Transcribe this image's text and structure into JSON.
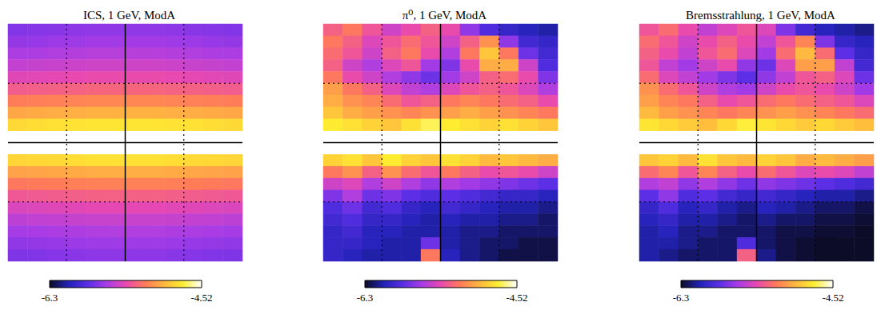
{
  "chart_data": [
    {
      "type": "heatmap",
      "title": "ICS, 1 GeV, ModA",
      "tick_labels": false,
      "grid": true,
      "colorbar": {
        "range": [
          -6.3,
          -4.52
        ],
        "ticks": [
          -6.3,
          -4.52
        ]
      },
      "values": [
        [
          -5.74,
          -5.73,
          -5.72,
          -5.71,
          -5.7,
          -5.7,
          -5.7,
          -5.7,
          -5.71,
          -5.72,
          -5.73,
          -5.74
        ],
        [
          -5.69,
          -5.68,
          -5.67,
          -5.66,
          -5.65,
          -5.65,
          -5.65,
          -5.65,
          -5.66,
          -5.67,
          -5.68,
          -5.69
        ],
        [
          -5.62,
          -5.61,
          -5.6,
          -5.59,
          -5.58,
          -5.58,
          -5.58,
          -5.58,
          -5.59,
          -5.6,
          -5.61,
          -5.62
        ],
        [
          -5.54,
          -5.53,
          -5.52,
          -5.51,
          -5.5,
          -5.5,
          -5.5,
          -5.5,
          -5.51,
          -5.52,
          -5.53,
          -5.54
        ],
        [
          -5.44,
          -5.43,
          -5.42,
          -5.41,
          -5.4,
          -5.4,
          -5.4,
          -5.4,
          -5.41,
          -5.42,
          -5.43,
          -5.44
        ],
        [
          -5.32,
          -5.31,
          -5.3,
          -5.29,
          -5.28,
          -5.28,
          -5.28,
          -5.28,
          -5.29,
          -5.3,
          -5.31,
          -5.32
        ],
        [
          -5.18,
          -5.17,
          -5.16,
          -5.15,
          -5.14,
          -5.14,
          -5.14,
          -5.14,
          -5.15,
          -5.16,
          -5.17,
          -5.18
        ],
        [
          -5.02,
          -5.01,
          -5.0,
          -4.99,
          -4.98,
          -4.98,
          -4.98,
          -4.98,
          -4.99,
          -5.0,
          -5.01,
          -5.02
        ],
        [
          -4.82,
          -4.81,
          -4.8,
          -4.79,
          -4.78,
          -4.78,
          -4.78,
          -4.78,
          -4.79,
          -4.8,
          -4.81,
          -4.82
        ],
        [
          null,
          null,
          null,
          null,
          null,
          null,
          null,
          null,
          null,
          null,
          null,
          null
        ],
        [
          null,
          null,
          null,
          null,
          null,
          null,
          null,
          null,
          null,
          null,
          null,
          null
        ],
        [
          -4.84,
          -4.83,
          -4.82,
          -4.81,
          -4.8,
          -4.8,
          -4.8,
          -4.8,
          -4.81,
          -4.82,
          -4.83,
          -4.84
        ],
        [
          -5.04,
          -5.03,
          -5.02,
          -5.01,
          -5.0,
          -5.0,
          -5.0,
          -5.0,
          -5.01,
          -5.02,
          -5.03,
          -5.04
        ],
        [
          -5.2,
          -5.19,
          -5.18,
          -5.17,
          -5.16,
          -5.16,
          -5.16,
          -5.16,
          -5.17,
          -5.18,
          -5.19,
          -5.2
        ],
        [
          -5.34,
          -5.33,
          -5.32,
          -5.31,
          -5.3,
          -5.3,
          -5.3,
          -5.3,
          -5.31,
          -5.32,
          -5.33,
          -5.34
        ],
        [
          -5.46,
          -5.45,
          -5.44,
          -5.43,
          -5.42,
          -5.42,
          -5.42,
          -5.42,
          -5.43,
          -5.44,
          -5.45,
          -5.46
        ],
        [
          -5.56,
          -5.55,
          -5.54,
          -5.53,
          -5.52,
          -5.52,
          -5.52,
          -5.52,
          -5.53,
          -5.54,
          -5.55,
          -5.56
        ],
        [
          -5.64,
          -5.63,
          -5.62,
          -5.61,
          -5.6,
          -5.6,
          -5.6,
          -5.6,
          -5.61,
          -5.62,
          -5.63,
          -5.64
        ],
        [
          -5.7,
          -5.69,
          -5.68,
          -5.67,
          -5.66,
          -5.66,
          -5.66,
          -5.66,
          -5.67,
          -5.68,
          -5.69,
          -5.7
        ],
        [
          -5.75,
          -5.74,
          -5.73,
          -5.72,
          -5.71,
          -5.71,
          -5.71,
          -5.71,
          -5.72,
          -5.73,
          -5.74,
          -5.75
        ]
      ]
    },
    {
      "type": "heatmap",
      "title": "π⁰, 1 GeV, ModA",
      "tick_labels": false,
      "grid": true,
      "colorbar": {
        "range": [
          -6.3,
          -4.52
        ],
        "ticks": [
          -6.3,
          -4.52
        ]
      },
      "values": [
        [
          -5.3,
          -5.2,
          -5.35,
          -5.5,
          -5.4,
          -5.3,
          -5.4,
          -5.7,
          -5.9,
          -6.0,
          -6.05,
          -6.1
        ],
        [
          -5.2,
          -5.3,
          -5.45,
          -5.35,
          -5.25,
          -5.35,
          -5.5,
          -5.3,
          -5.1,
          -5.7,
          -5.95,
          -6.0
        ],
        [
          -5.25,
          -5.35,
          -5.5,
          -5.3,
          -5.2,
          -5.4,
          -5.6,
          -5.2,
          -4.9,
          -5.2,
          -5.8,
          -5.95
        ],
        [
          -5.3,
          -5.5,
          -5.6,
          -5.45,
          -5.35,
          -5.65,
          -5.75,
          -5.4,
          -5.0,
          -5.0,
          -5.5,
          -5.9
        ],
        [
          -5.2,
          -5.4,
          -5.5,
          -5.6,
          -5.7,
          -5.8,
          -5.65,
          -5.5,
          -5.3,
          -5.25,
          -5.4,
          -5.75
        ],
        [
          -5.05,
          -5.2,
          -5.3,
          -5.45,
          -5.55,
          -5.6,
          -5.45,
          -5.35,
          -5.3,
          -5.35,
          -5.45,
          -5.6
        ],
        [
          -5.0,
          -5.1,
          -5.15,
          -5.25,
          -5.35,
          -5.3,
          -5.2,
          -5.15,
          -5.2,
          -5.25,
          -5.3,
          -5.4
        ],
        [
          -4.9,
          -5.0,
          -5.05,
          -5.1,
          -5.15,
          -5.1,
          -5.05,
          -5.0,
          -5.05,
          -5.1,
          -5.15,
          -5.2
        ],
        [
          -4.75,
          -4.8,
          -4.85,
          -4.9,
          -4.8,
          -4.7,
          -4.75,
          -4.8,
          -4.85,
          -4.8,
          -4.85,
          -4.9
        ],
        [
          null,
          null,
          null,
          null,
          null,
          null,
          null,
          null,
          null,
          null,
          null,
          null
        ],
        [
          null,
          null,
          null,
          null,
          null,
          null,
          null,
          null,
          null,
          null,
          null,
          null
        ],
        [
          -4.85,
          -4.8,
          -4.9,
          -4.75,
          -4.85,
          -4.9,
          -4.8,
          -4.85,
          -4.95,
          -4.9,
          -4.95,
          -5.0
        ],
        [
          -5.2,
          -5.1,
          -5.3,
          -5.1,
          -5.25,
          -5.35,
          -5.2,
          -5.3,
          -5.4,
          -5.35,
          -5.4,
          -5.5
        ],
        [
          -5.5,
          -5.45,
          -5.6,
          -5.5,
          -5.6,
          -5.7,
          -5.6,
          -5.65,
          -5.7,
          -5.75,
          -5.8,
          -5.85
        ],
        [
          -5.75,
          -5.6,
          -5.8,
          -5.75,
          -5.85,
          -5.9,
          -5.85,
          -5.9,
          -5.95,
          -6.0,
          -6.0,
          -6.05
        ],
        [
          -5.9,
          -5.8,
          -5.95,
          -5.9,
          -6.0,
          -6.05,
          -5.95,
          -6.0,
          -6.05,
          -6.1,
          -6.1,
          -6.15
        ],
        [
          -5.95,
          -5.9,
          -6.0,
          -6.0,
          -6.05,
          -6.1,
          -6.05,
          -6.1,
          -6.1,
          -6.15,
          -6.15,
          -6.2
        ],
        [
          -6.0,
          -5.95,
          -6.05,
          -6.05,
          -6.1,
          -6.1,
          -6.1,
          -6.15,
          -6.15,
          -6.2,
          -6.2,
          -6.2
        ],
        [
          -6.0,
          -6.0,
          -6.05,
          -6.1,
          -6.1,
          -5.8,
          -6.1,
          -6.15,
          -6.2,
          -6.2,
          -6.25,
          -6.25
        ],
        [
          -6.0,
          -6.05,
          -6.1,
          -6.1,
          -6.1,
          -5.2,
          -6.05,
          -6.15,
          -6.2,
          -6.25,
          -6.25,
          -6.25
        ]
      ]
    },
    {
      "type": "heatmap",
      "title": "Bremsstrahlung, 1 GeV, ModA",
      "tick_labels": false,
      "grid": true,
      "colorbar": {
        "range": [
          -6.3,
          -4.52
        ],
        "ticks": [
          -6.3,
          -4.52
        ]
      },
      "values": [
        [
          -5.35,
          -5.25,
          -5.4,
          -5.55,
          -5.45,
          -5.35,
          -5.45,
          -5.75,
          -5.95,
          -6.05,
          -6.1,
          -6.15
        ],
        [
          -5.25,
          -5.35,
          -5.5,
          -5.4,
          -5.3,
          -5.4,
          -5.55,
          -5.35,
          -5.15,
          -5.75,
          -6.0,
          -6.05
        ],
        [
          -5.3,
          -5.4,
          -5.55,
          -5.35,
          -5.25,
          -5.45,
          -5.65,
          -5.25,
          -4.95,
          -5.25,
          -5.85,
          -6.0
        ],
        [
          -5.35,
          -5.55,
          -5.65,
          -5.5,
          -5.4,
          -5.7,
          -5.8,
          -5.45,
          -5.05,
          -5.05,
          -5.55,
          -5.95
        ],
        [
          -5.25,
          -5.45,
          -5.55,
          -5.65,
          -5.75,
          -5.85,
          -5.7,
          -5.55,
          -5.35,
          -5.3,
          -5.45,
          -5.8
        ],
        [
          -5.1,
          -5.25,
          -5.35,
          -5.5,
          -5.6,
          -5.65,
          -5.5,
          -5.4,
          -5.35,
          -5.4,
          -5.5,
          -5.65
        ],
        [
          -5.05,
          -5.15,
          -5.2,
          -5.3,
          -5.4,
          -5.35,
          -5.25,
          -5.2,
          -5.25,
          -5.3,
          -5.35,
          -5.45
        ],
        [
          -4.95,
          -5.05,
          -5.1,
          -5.15,
          -5.2,
          -5.15,
          -5.1,
          -5.05,
          -5.1,
          -5.15,
          -5.2,
          -5.25
        ],
        [
          -4.78,
          -4.83,
          -4.88,
          -4.93,
          -4.83,
          -4.73,
          -4.78,
          -4.83,
          -4.88,
          -4.83,
          -4.88,
          -4.93
        ],
        [
          null,
          null,
          null,
          null,
          null,
          null,
          null,
          null,
          null,
          null,
          null,
          null
        ],
        [
          null,
          null,
          null,
          null,
          null,
          null,
          null,
          null,
          null,
          null,
          null,
          null
        ],
        [
          -4.9,
          -4.85,
          -4.95,
          -4.8,
          -4.9,
          -4.95,
          -4.85,
          -4.9,
          -5.0,
          -4.95,
          -5.0,
          -5.05
        ],
        [
          -5.25,
          -5.15,
          -5.35,
          -5.15,
          -5.3,
          -5.4,
          -5.25,
          -5.35,
          -5.45,
          -5.4,
          -5.45,
          -5.55
        ],
        [
          -5.6,
          -5.55,
          -5.7,
          -5.6,
          -5.7,
          -5.8,
          -5.7,
          -5.75,
          -5.8,
          -5.85,
          -5.9,
          -5.95
        ],
        [
          -5.85,
          -5.7,
          -5.9,
          -5.85,
          -5.95,
          -6.0,
          -5.95,
          -6.0,
          -6.05,
          -6.1,
          -6.1,
          -6.15
        ],
        [
          -6.0,
          -5.9,
          -6.05,
          -6.0,
          -6.1,
          -6.15,
          -6.05,
          -6.1,
          -6.15,
          -6.2,
          -6.2,
          -6.25
        ],
        [
          -6.05,
          -6.0,
          -6.1,
          -6.1,
          -6.15,
          -6.2,
          -6.15,
          -6.2,
          -6.2,
          -6.25,
          -6.25,
          -6.28
        ],
        [
          -6.1,
          -6.05,
          -6.15,
          -6.15,
          -6.2,
          -6.2,
          -6.2,
          -6.25,
          -6.25,
          -6.28,
          -6.28,
          -6.3
        ],
        [
          -6.1,
          -6.1,
          -6.15,
          -6.2,
          -6.2,
          -5.9,
          -6.2,
          -6.25,
          -6.28,
          -6.3,
          -6.3,
          -6.3
        ],
        [
          -6.1,
          -6.15,
          -6.2,
          -6.2,
          -6.2,
          -5.3,
          -6.15,
          -6.25,
          -6.28,
          -6.3,
          -6.3,
          -6.3
        ]
      ]
    }
  ]
}
